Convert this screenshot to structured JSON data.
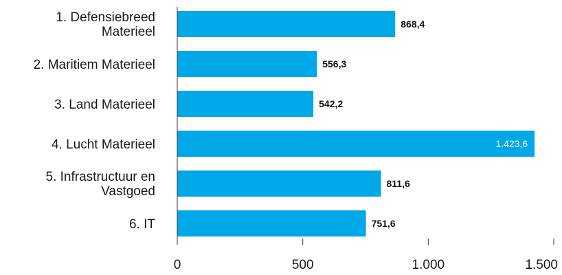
{
  "chart_data": {
    "type": "bar",
    "orientation": "horizontal",
    "categories": [
      [
        "1. Defensiebreed",
        "Materieel"
      ],
      [
        "2. Maritiem Materieel"
      ],
      [
        "3. Land Materieel"
      ],
      [
        "4. Lucht Materieel"
      ],
      [
        "5. Infrastructuur en",
        "Vastgoed"
      ],
      [
        "6. IT"
      ]
    ],
    "values": [
      868.4,
      556.3,
      542.2,
      1423.6,
      811.6,
      751.6
    ],
    "value_labels": [
      "868,4",
      "556,3",
      "542,2",
      "1.423,6",
      "811,6",
      "751,6"
    ],
    "xlim": [
      0,
      1500
    ],
    "xticks": [
      0,
      500,
      1000,
      1500
    ],
    "xtick_labels": [
      "0",
      "500",
      "1.000",
      "1.500"
    ],
    "grid": false,
    "colors": {
      "bar": "#00a8e8",
      "axis": "#333333"
    }
  }
}
